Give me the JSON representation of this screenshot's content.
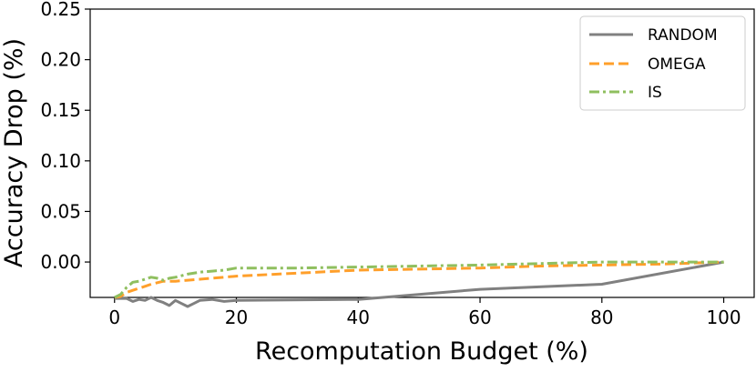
{
  "chart_data": {
    "type": "line",
    "xlabel": "Recomputation Budget (%)",
    "ylabel": "Accuracy Drop (%)",
    "xlim": [
      -4,
      105
    ],
    "ylim": [
      -0.035,
      0.25
    ],
    "xticks": [
      0,
      20,
      40,
      60,
      80,
      100
    ],
    "yticks": [
      0.25,
      0.2,
      0.15,
      0.1,
      0.05,
      0.0
    ],
    "xtick_labels": [
      "0",
      "20",
      "40",
      "60",
      "80",
      "100"
    ],
    "ytick_labels": [
      "0.25",
      "0.20",
      "0.15",
      "0.10",
      "0.05",
      "0.00"
    ],
    "grid": false,
    "legend_position": "top-right",
    "series": [
      {
        "name": "RANDOM",
        "color": "#808080",
        "style": "solid",
        "x": [
          0,
          2,
          3,
          4,
          5,
          6,
          7,
          8,
          9,
          10,
          11,
          12,
          13,
          14,
          16,
          18,
          20,
          40,
          60,
          80,
          100
        ],
        "y": [
          -0.036,
          -0.036,
          -0.039,
          -0.037,
          -0.038,
          -0.035,
          -0.038,
          -0.04,
          -0.043,
          -0.038,
          -0.041,
          -0.044,
          -0.041,
          -0.038,
          -0.037,
          -0.039,
          -0.038,
          -0.037,
          -0.027,
          -0.022,
          0.0
        ]
      },
      {
        "name": "OMEGA",
        "color": "#ff9f2a",
        "style": "dashed",
        "x": [
          0,
          1,
          2,
          3,
          4,
          5,
          6,
          8,
          10,
          12,
          14,
          16,
          18,
          20,
          30,
          40,
          50,
          60,
          70,
          80,
          90,
          100
        ],
        "y": [
          -0.035,
          -0.034,
          -0.03,
          -0.028,
          -0.026,
          -0.024,
          -0.022,
          -0.019,
          -0.019,
          -0.018,
          -0.017,
          -0.016,
          -0.015,
          -0.014,
          -0.011,
          -0.008,
          -0.007,
          -0.006,
          -0.004,
          -0.003,
          -0.002,
          0.0
        ]
      },
      {
        "name": "IS",
        "color": "#8fbf5f",
        "style": "dashdot",
        "x": [
          0,
          1,
          2,
          3,
          4,
          5,
          6,
          7,
          8,
          9,
          10,
          12,
          14,
          16,
          18,
          20,
          30,
          40,
          60,
          80,
          100
        ],
        "y": [
          -0.035,
          -0.032,
          -0.025,
          -0.02,
          -0.019,
          -0.017,
          -0.015,
          -0.016,
          -0.018,
          -0.016,
          -0.015,
          -0.012,
          -0.01,
          -0.009,
          -0.008,
          -0.006,
          -0.006,
          -0.005,
          -0.003,
          0.0,
          0.0
        ]
      }
    ]
  }
}
